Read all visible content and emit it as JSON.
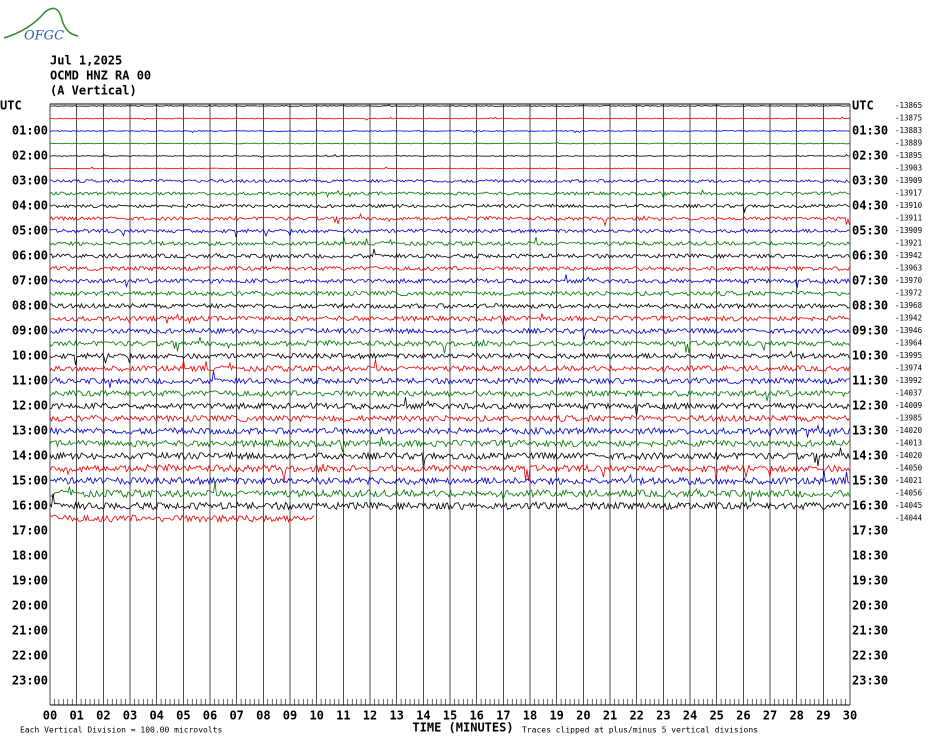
{
  "logo": "OFGC",
  "header": {
    "date": "Jul 1,2025",
    "station": "OCMD HNZ RA 00",
    "component": "(A Vertical)"
  },
  "left_labels": [
    "UTC",
    "01:00",
    "02:00",
    "03:00",
    "04:00",
    "05:00",
    "06:00",
    "07:00",
    "08:00",
    "09:00",
    "10:00",
    "11:00",
    "12:00",
    "13:00",
    "14:00",
    "15:00",
    "16:00",
    "17:00",
    "18:00",
    "19:00",
    "20:00",
    "21:00",
    "22:00",
    "23:00"
  ],
  "right_labels": [
    "UTC",
    "01:30",
    "02:30",
    "03:30",
    "04:30",
    "05:30",
    "06:30",
    "07:30",
    "08:30",
    "09:30",
    "10:30",
    "11:30",
    "12:30",
    "13:30",
    "14:30",
    "15:30",
    "16:30",
    "17:30",
    "18:30",
    "19:30",
    "20:30",
    "21:30",
    "22:30",
    "23:30"
  ],
  "row_counts": [
    -13865,
    -13875,
    -13883,
    -13889,
    -13895,
    -13903,
    -13909,
    -13917,
    -13910,
    -13911,
    -13909,
    -13921,
    -13942,
    -13963,
    -13970,
    -13972,
    -13968,
    -13942,
    -13946,
    -13964,
    -13995,
    -13974,
    -13992,
    -14037,
    -14009,
    -13985,
    -14020,
    -14013,
    -14020,
    -14050,
    -14021,
    -14056,
    -14045,
    -14044
  ],
  "x_labels": [
    "00",
    "01",
    "02",
    "03",
    "04",
    "05",
    "06",
    "07",
    "08",
    "09",
    "10",
    "11",
    "12",
    "13",
    "14",
    "15",
    "16",
    "17",
    "18",
    "19",
    "20",
    "21",
    "22",
    "23",
    "24",
    "25",
    "26",
    "27",
    "28",
    "29",
    "30"
  ],
  "footer": {
    "scale": "Each Vertical Division =  100.00 microvolts",
    "x_title": "TIME (MINUTES)",
    "clip_note": "Traces clipped at plus/minus 5 vertical divisions"
  }
}
